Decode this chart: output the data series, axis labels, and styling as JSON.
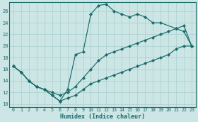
{
  "xlabel": "Humidex (Indice chaleur)",
  "xlim": [
    -0.5,
    23.5
  ],
  "ylim": [
    9.5,
    27.5
  ],
  "xticks": [
    0,
    1,
    2,
    3,
    4,
    5,
    6,
    7,
    8,
    9,
    10,
    11,
    12,
    13,
    14,
    15,
    16,
    17,
    18,
    19,
    20,
    21,
    22,
    23
  ],
  "yticks": [
    10,
    12,
    14,
    16,
    18,
    20,
    22,
    24,
    26
  ],
  "bg_color": "#cce5e5",
  "line_color": "#1a6b6b",
  "grid_color": "#aacfcf",
  "line1_x": [
    0,
    1,
    2,
    3,
    4,
    5,
    6,
    7,
    8,
    9,
    10,
    11,
    12,
    13,
    14,
    15,
    16,
    17,
    18,
    19,
    21,
    22,
    23
  ],
  "line1_y": [
    16.5,
    15.5,
    14.0,
    13.0,
    12.5,
    11.5,
    10.5,
    12.5,
    18.5,
    19.0,
    25.5,
    27.0,
    27.2,
    26.0,
    25.5,
    25.0,
    25.5,
    25.0,
    24.0,
    24.0,
    23.0,
    22.5,
    20.0
  ],
  "line2_x": [
    0,
    1,
    2,
    3,
    4,
    5,
    6,
    7,
    8,
    9,
    10,
    11,
    12,
    13,
    14,
    15,
    16,
    17,
    18,
    19,
    20,
    21,
    22,
    23
  ],
  "line2_y": [
    16.5,
    15.5,
    14.0,
    13.0,
    12.5,
    12.0,
    11.5,
    12.0,
    13.0,
    14.5,
    16.0,
    17.5,
    18.5,
    19.0,
    19.5,
    20.0,
    20.5,
    21.0,
    21.5,
    22.0,
    22.5,
    23.0,
    23.5,
    20.0
  ],
  "line3_x": [
    0,
    1,
    2,
    3,
    4,
    5,
    6,
    7,
    8,
    9,
    10,
    11,
    12,
    13,
    14,
    15,
    16,
    17,
    18,
    19,
    20,
    21,
    22,
    23
  ],
  "line3_y": [
    16.5,
    15.5,
    14.0,
    13.0,
    12.5,
    11.5,
    10.5,
    11.0,
    11.5,
    12.5,
    13.5,
    14.0,
    14.5,
    15.0,
    15.5,
    16.0,
    16.5,
    17.0,
    17.5,
    18.0,
    18.5,
    19.5,
    20.0,
    20.0
  ]
}
